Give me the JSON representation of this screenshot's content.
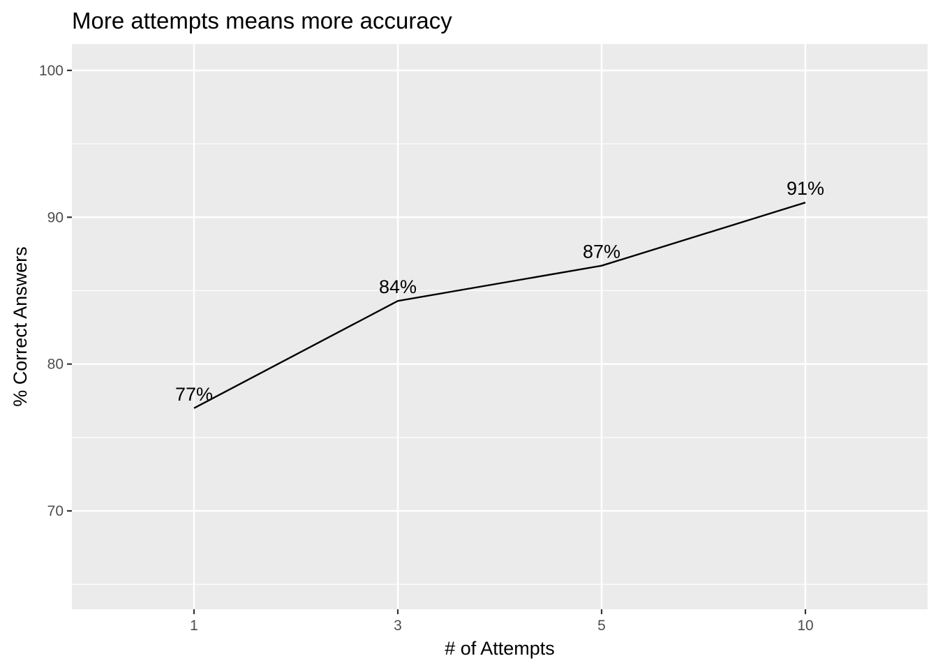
{
  "chart_data": {
    "type": "line",
    "title": "More attempts means more accuracy",
    "xlabel": "# of Attempts",
    "ylabel": "% Correct Answers",
    "categories": [
      "1",
      "3",
      "5",
      "10"
    ],
    "series": [
      {
        "values": [
          77.0,
          84.3,
          86.7,
          91.0
        ],
        "labels": [
          "77%",
          "84%",
          "87%",
          "91%"
        ]
      }
    ],
    "ylim": [
      63.3,
      101.8
    ],
    "yticks": [
      70,
      80,
      90,
      100
    ],
    "ytick_labels": [
      "70",
      "80",
      "90",
      "100"
    ],
    "y_minor_ticks": [
      65,
      75,
      85,
      95
    ],
    "grid": true,
    "legend": "none",
    "colors": {
      "panel_background": "#ebebeb",
      "grid": "#ffffff",
      "line": "#000000",
      "tick": "#333333",
      "tick_label": "#4d4d4d"
    }
  }
}
